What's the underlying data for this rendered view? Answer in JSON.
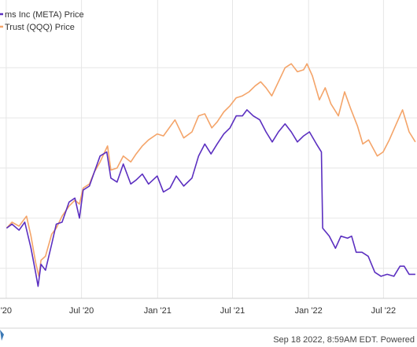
{
  "chart_data": {
    "type": "line",
    "x_tick_labels": [
      "'20",
      "Jul '20",
      "Jan '21",
      "Jul '21",
      "Jan '22",
      "Jul '22"
    ],
    "grid": true,
    "legend_position": "top-left",
    "series": [
      {
        "name": "ms Inc (META) Price",
        "color": "#5b2fc0",
        "points": [
          [
            "2020-01-02",
            0
          ],
          [
            "2020-01-15",
            2
          ],
          [
            "2020-02-01",
            -1
          ],
          [
            "2020-02-15",
            3
          ],
          [
            "2020-03-01",
            -10
          ],
          [
            "2020-03-12",
            -22
          ],
          [
            "2020-03-18",
            -29
          ],
          [
            "2020-03-25",
            -18
          ],
          [
            "2020-04-05",
            -21
          ],
          [
            "2020-04-20",
            -8
          ],
          [
            "2020-05-01",
            2
          ],
          [
            "2020-05-15",
            3
          ],
          [
            "2020-06-01",
            13
          ],
          [
            "2020-06-15",
            15
          ],
          [
            "2020-06-26",
            5
          ],
          [
            "2020-07-05",
            19
          ],
          [
            "2020-07-20",
            21
          ],
          [
            "2020-08-01",
            28
          ],
          [
            "2020-08-15",
            36
          ],
          [
            "2020-08-31",
            38
          ],
          [
            "2020-09-10",
            25
          ],
          [
            "2020-09-25",
            23
          ],
          [
            "2020-10-10",
            32
          ],
          [
            "2020-10-28",
            22
          ],
          [
            "2020-11-10",
            24
          ],
          [
            "2020-11-25",
            27
          ],
          [
            "2020-12-10",
            22
          ],
          [
            "2020-12-31",
            26
          ],
          [
            "2021-01-15",
            18
          ],
          [
            "2021-01-31",
            20
          ],
          [
            "2021-02-15",
            26
          ],
          [
            "2021-03-05",
            21
          ],
          [
            "2021-03-25",
            25
          ],
          [
            "2021-04-10",
            36
          ],
          [
            "2021-04-25",
            42
          ],
          [
            "2021-05-10",
            37
          ],
          [
            "2021-05-25",
            42
          ],
          [
            "2021-06-10",
            47
          ],
          [
            "2021-06-25",
            50
          ],
          [
            "2021-07-10",
            56
          ],
          [
            "2021-07-25",
            56
          ],
          [
            "2021-08-05",
            59
          ],
          [
            "2021-08-20",
            56
          ],
          [
            "2021-09-05",
            54
          ],
          [
            "2021-09-20",
            48
          ],
          [
            "2021-10-05",
            43
          ],
          [
            "2021-10-20",
            48
          ],
          [
            "2021-11-05",
            52
          ],
          [
            "2021-11-20",
            48
          ],
          [
            "2021-12-05",
            43
          ],
          [
            "2021-12-20",
            46
          ],
          [
            "2022-01-03",
            48
          ],
          [
            "2022-01-20",
            42
          ],
          [
            "2022-02-01",
            38
          ],
          [
            "2022-02-04",
            0
          ],
          [
            "2022-02-20",
            -4
          ],
          [
            "2022-03-07",
            -10
          ],
          [
            "2022-03-20",
            -4
          ],
          [
            "2022-04-05",
            -5
          ],
          [
            "2022-04-15",
            -4
          ],
          [
            "2022-04-26",
            -12
          ],
          [
            "2022-05-10",
            -12
          ],
          [
            "2022-05-25",
            -14
          ],
          [
            "2022-06-10",
            -22
          ],
          [
            "2022-06-25",
            -24
          ],
          [
            "2022-07-10",
            -23
          ],
          [
            "2022-07-26",
            -24
          ],
          [
            "2022-08-10",
            -19
          ],
          [
            "2022-08-20",
            -19
          ],
          [
            "2022-09-01",
            -23
          ],
          [
            "2022-09-16",
            -23
          ]
        ]
      },
      {
        "name": "Trust (QQQ) Price",
        "color": "#f4a469",
        "points": [
          [
            "2020-01-02",
            0
          ],
          [
            "2020-01-15",
            3
          ],
          [
            "2020-02-01",
            1
          ],
          [
            "2020-02-19",
            6
          ],
          [
            "2020-03-01",
            -4
          ],
          [
            "2020-03-12",
            -17
          ],
          [
            "2020-03-20",
            -24
          ],
          [
            "2020-03-25",
            -16
          ],
          [
            "2020-04-05",
            -14
          ],
          [
            "2020-04-20",
            -3
          ],
          [
            "2020-05-01",
            0
          ],
          [
            "2020-05-15",
            6
          ],
          [
            "2020-06-01",
            11
          ],
          [
            "2020-06-15",
            14
          ],
          [
            "2020-06-26",
            12
          ],
          [
            "2020-07-05",
            20
          ],
          [
            "2020-07-20",
            22
          ],
          [
            "2020-08-01",
            28
          ],
          [
            "2020-08-15",
            33
          ],
          [
            "2020-09-02",
            41
          ],
          [
            "2020-09-10",
            29
          ],
          [
            "2020-09-25",
            30
          ],
          [
            "2020-10-10",
            36
          ],
          [
            "2020-10-28",
            33
          ],
          [
            "2020-11-10",
            37
          ],
          [
            "2020-11-25",
            41
          ],
          [
            "2020-12-10",
            44
          ],
          [
            "2020-12-31",
            47
          ],
          [
            "2021-01-15",
            46
          ],
          [
            "2021-02-12",
            54
          ],
          [
            "2021-03-05",
            45
          ],
          [
            "2021-03-25",
            48
          ],
          [
            "2021-04-10",
            56
          ],
          [
            "2021-04-25",
            57
          ],
          [
            "2021-05-12",
            50
          ],
          [
            "2021-05-25",
            53
          ],
          [
            "2021-06-10",
            58
          ],
          [
            "2021-06-25",
            61
          ],
          [
            "2021-07-10",
            65
          ],
          [
            "2021-07-25",
            66
          ],
          [
            "2021-08-10",
            68
          ],
          [
            "2021-08-25",
            71
          ],
          [
            "2021-09-07",
            73
          ],
          [
            "2021-09-20",
            70
          ],
          [
            "2021-10-04",
            66
          ],
          [
            "2021-10-20",
            73
          ],
          [
            "2021-11-05",
            80
          ],
          [
            "2021-11-20",
            82
          ],
          [
            "2021-12-05",
            78
          ],
          [
            "2021-12-20",
            79
          ],
          [
            "2021-12-28",
            82
          ],
          [
            "2022-01-10",
            76
          ],
          [
            "2022-01-27",
            64
          ],
          [
            "2022-02-10",
            70
          ],
          [
            "2022-02-24",
            62
          ],
          [
            "2022-03-14",
            56
          ],
          [
            "2022-03-29",
            68
          ],
          [
            "2022-04-12",
            60
          ],
          [
            "2022-04-29",
            51
          ],
          [
            "2022-05-12",
            42
          ],
          [
            "2022-05-26",
            44
          ],
          [
            "2022-06-16",
            36
          ],
          [
            "2022-06-30",
            38
          ],
          [
            "2022-07-15",
            44
          ],
          [
            "2022-08-01",
            52
          ],
          [
            "2022-08-16",
            59
          ],
          [
            "2022-09-01",
            48
          ],
          [
            "2022-09-16",
            43
          ]
        ]
      }
    ]
  },
  "footer": {
    "timestamp": "Sep 18 2022, 8:59AM EDT. Powered"
  }
}
